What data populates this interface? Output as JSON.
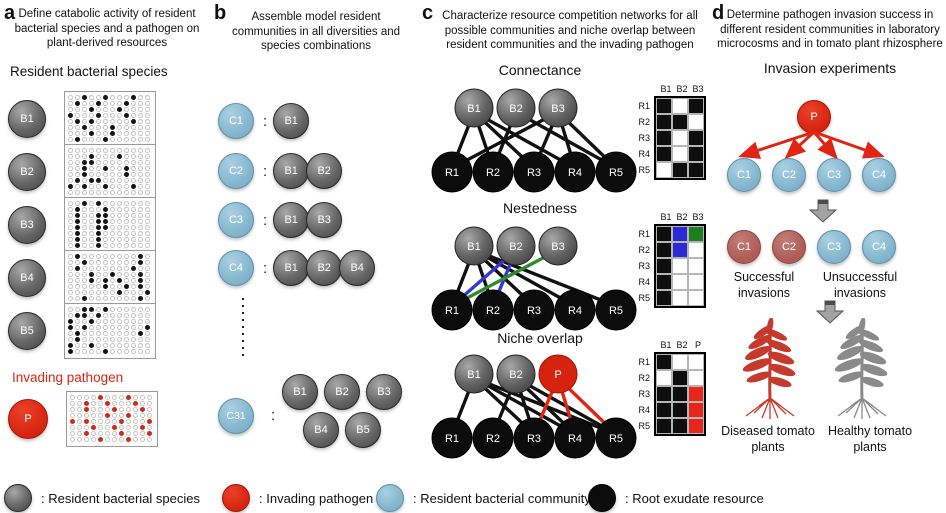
{
  "colors": {
    "matrix": {
      "b": "#0d0d0d",
      "w": "#ffffff",
      "blue": "#2b2bd5",
      "green": "#1e7d1e",
      "r": "#e8251a"
    },
    "edge": {
      "black": "#111111",
      "blue": "#3535d8",
      "green": "#2e8b2e",
      "red": "#e02514"
    },
    "diseased_plant": "#c53a2c",
    "healthy_plant": "#8a8a8a",
    "accent_red": "#d92615"
  },
  "panels": {
    "a": {
      "letter": "a",
      "description": "Define catabolic activity of resident bacterial species and a pathogen on plant-derived resources",
      "heading": "Resident bacterial species",
      "grid": {
        "cols": 12,
        "rows": 8
      },
      "species": [
        {
          "label": "B1",
          "wells": [
            2,
            5,
            9,
            13,
            16,
            20,
            27,
            31,
            36,
            40,
            44,
            49,
            51,
            57,
            62,
            66,
            75,
            78,
            85,
            89
          ]
        },
        {
          "label": "B2",
          "wells": [
            15,
            19,
            26,
            27,
            38,
            41,
            44,
            50,
            56,
            61,
            63,
            64,
            72,
            74,
            77,
            81
          ]
        },
        {
          "label": "B3",
          "wells": [
            2,
            4,
            13,
            17,
            25,
            28,
            29,
            37,
            40,
            41,
            49,
            52,
            53,
            61,
            64,
            73,
            76,
            85,
            88
          ]
        },
        {
          "label": "B4",
          "wells": [
            1,
            10,
            14,
            22,
            25,
            33,
            39,
            42,
            46,
            51,
            53,
            55,
            58,
            65,
            68,
            70,
            79,
            83,
            86,
            94
          ]
        },
        {
          "label": "B5",
          "wells": [
            2,
            3,
            5,
            13,
            14,
            16,
            24,
            27,
            36,
            38,
            47,
            49,
            58,
            61,
            72,
            75,
            84,
            89
          ]
        }
      ],
      "pathogen_heading": "Invading pathogen",
      "pathogen": {
        "label": "P",
        "wells": [
          4,
          8,
          14,
          17,
          21,
          26,
          30,
          34,
          41,
          44,
          48,
          50,
          55,
          59,
          63,
          66,
          70,
          74,
          79,
          83,
          88,
          92
        ]
      }
    },
    "b": {
      "letter": "b",
      "description": "Assemble model resident communities in all diversities and species combinations",
      "rows": [
        {
          "community": "C1",
          "members": [
            "B1"
          ]
        },
        {
          "community": "C2",
          "members": [
            "B1",
            "B2"
          ]
        },
        {
          "community": "C3",
          "members": [
            "B1",
            "B3"
          ]
        },
        {
          "community": "C4",
          "members": [
            "B1",
            "B2",
            "B4"
          ]
        }
      ],
      "last_row": {
        "community": "C31",
        "members_top": [
          "B1",
          "B2",
          "B3"
        ],
        "members_bottom": [
          "B4",
          "B5"
        ]
      }
    },
    "c": {
      "letter": "c",
      "description": "Characterize resource competition networks for all possible  communities and niche overlap between resident communities and the invading pathogen",
      "sections": [
        {
          "title": "Connectance",
          "top": [
            {
              "label": "B1",
              "type": "gray"
            },
            {
              "label": "B2",
              "type": "gray"
            },
            {
              "label": "B3",
              "type": "gray"
            }
          ],
          "bottom": [
            "R1",
            "R2",
            "R3",
            "R4",
            "R5"
          ],
          "edges": [
            [
              0,
              0,
              "black"
            ],
            [
              0,
              1,
              "black"
            ],
            [
              0,
              2,
              "black"
            ],
            [
              0,
              3,
              "black"
            ],
            [
              1,
              1,
              "black"
            ],
            [
              1,
              4,
              "black"
            ],
            [
              2,
              0,
              "black"
            ],
            [
              2,
              2,
              "black"
            ],
            [
              2,
              3,
              "black"
            ],
            [
              2,
              4,
              "black"
            ]
          ],
          "matrix": {
            "cols": [
              "B1",
              "B2",
              "B3"
            ],
            "rows": [
              "R1",
              "R2",
              "R3",
              "R4",
              "R5"
            ],
            "cells": [
              [
                "b",
                "w",
                "b"
              ],
              [
                "b",
                "b",
                "w"
              ],
              [
                "b",
                "w",
                "b"
              ],
              [
                "b",
                "w",
                "b"
              ],
              [
                "w",
                "b",
                "b"
              ]
            ]
          }
        },
        {
          "title": "Nestedness",
          "top": [
            {
              "label": "B1",
              "type": "gray"
            },
            {
              "label": "B2",
              "type": "gray"
            },
            {
              "label": "B3",
              "type": "gray"
            }
          ],
          "bottom": [
            "R1",
            "R2",
            "R3",
            "R4",
            "R5"
          ],
          "edges": [
            [
              0,
              0,
              "black"
            ],
            [
              0,
              1,
              "black"
            ],
            [
              0,
              2,
              "black"
            ],
            [
              0,
              3,
              "black"
            ],
            [
              0,
              4,
              "black"
            ],
            [
              1,
              0,
              "blue"
            ],
            [
              1,
              1,
              "blue"
            ],
            [
              2,
              0,
              "green"
            ]
          ],
          "matrix": {
            "cols": [
              "B1",
              "B2",
              "B3"
            ],
            "rows": [
              "R1",
              "R2",
              "R3",
              "R4",
              "R5"
            ],
            "cells": [
              [
                "b",
                "blue",
                "green"
              ],
              [
                "b",
                "blue",
                "w"
              ],
              [
                "b",
                "w",
                "w"
              ],
              [
                "b",
                "w",
                "w"
              ],
              [
                "b",
                "w",
                "w"
              ]
            ]
          }
        },
        {
          "title": "Niche overlap",
          "top": [
            {
              "label": "B1",
              "type": "gray"
            },
            {
              "label": "B2",
              "type": "gray"
            },
            {
              "label": "P",
              "type": "red"
            }
          ],
          "bottom": [
            "R1",
            "R2",
            "R3",
            "R4",
            "R5"
          ],
          "edges": [
            [
              0,
              0,
              "black"
            ],
            [
              0,
              2,
              "black"
            ],
            [
              0,
              3,
              "black"
            ],
            [
              0,
              4,
              "black"
            ],
            [
              1,
              1,
              "black"
            ],
            [
              1,
              2,
              "black"
            ],
            [
              1,
              3,
              "black"
            ],
            [
              1,
              4,
              "black"
            ],
            [
              2,
              2,
              "red"
            ],
            [
              2,
              3,
              "red"
            ],
            [
              2,
              4,
              "red"
            ]
          ],
          "matrix": {
            "cols": [
              "B1",
              "B2",
              "P"
            ],
            "rows": [
              "R1",
              "R2",
              "R3",
              "R4",
              "R5"
            ],
            "cells": [
              [
                "b",
                "w",
                "w"
              ],
              [
                "w",
                "b",
                "w"
              ],
              [
                "b",
                "b",
                "r"
              ],
              [
                "b",
                "b",
                "r"
              ],
              [
                "b",
                "b",
                "r"
              ]
            ]
          }
        }
      ]
    },
    "d": {
      "letter": "d",
      "description": "Determine pathogen invasion success in different  resident communities in laboratory microcosms and in tomato plant rhizosphere",
      "heading": "Invasion experiments",
      "pathogen_label": "P",
      "communities": [
        "C1",
        "C2",
        "C3",
        "C4"
      ],
      "outcome": {
        "nodes": [
          {
            "label": "C1",
            "type": "darkred"
          },
          {
            "label": "C2",
            "type": "darkred"
          },
          {
            "label": "C3",
            "type": "blue"
          },
          {
            "label": "C4",
            "type": "blue"
          }
        ],
        "successful_caption": "Successful invasions",
        "unsuccessful_caption": "Unsuccessful invasions"
      },
      "plants": [
        {
          "caption": "Diseased tomato plants",
          "type": "diseased"
        },
        {
          "caption": "Healthy tomato plants",
          "type": "healthy"
        }
      ]
    }
  },
  "legend": {
    "items": [
      {
        "type": "gray",
        "label": ": Resident bacterial species"
      },
      {
        "type": "red",
        "label": ": Invading pathogen"
      },
      {
        "type": "blue",
        "label": ": Resident bacterial community"
      },
      {
        "type": "black",
        "label": ": Root exudate resource"
      }
    ]
  }
}
